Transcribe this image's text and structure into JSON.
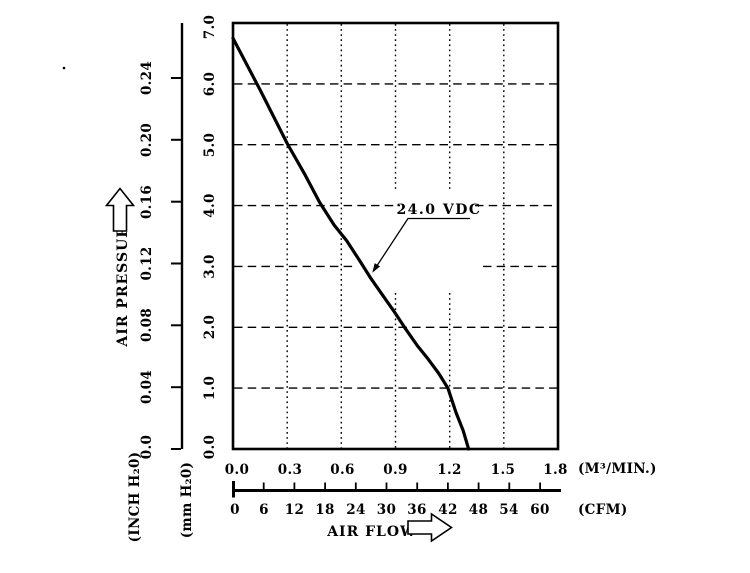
{
  "page": {
    "background": "#ffffff",
    "ink": "#000000"
  },
  "callout": {
    "label": "24.0 VDC"
  },
  "y_axis": {
    "title": "AIR PRESSURE",
    "inch": {
      "unit_label": "(INCH H₂0)",
      "ticks": [
        "0.0",
        "0.04",
        "0.08",
        "0.12",
        "0.16",
        "0.20",
        "0.24"
      ]
    },
    "mm": {
      "unit_label": "(mm H₂0)",
      "ticks": [
        "0.0",
        "1.0",
        "2.0",
        "3.0",
        "4.0",
        "5.0",
        "6.0",
        "7.0"
      ]
    }
  },
  "x_axis": {
    "title": "AIR FLOW",
    "m3min": {
      "unit_label": "(M³/MIN.)",
      "ticks": [
        "0.0",
        "0.3",
        "0.6",
        "0.9",
        "1.2",
        "1.5",
        "1.8"
      ]
    },
    "cfm": {
      "unit_label": "(CFM)",
      "ticks": [
        "0",
        "6",
        "12",
        "18",
        "24",
        "30",
        "36",
        "42",
        "48",
        "54",
        "60"
      ]
    }
  },
  "chart_data": {
    "type": "line",
    "title": "",
    "xlabel": "AIR FLOW",
    "ylabel": "AIR PRESSURE",
    "x_units": [
      "(M³/MIN.)",
      "(CFM)"
    ],
    "y_units": [
      "(INCH H₂0)",
      "(mm H₂0)"
    ],
    "xlim": [
      0,
      1.8
    ],
    "ylim": [
      0,
      7.0
    ],
    "x_ticks_m3min": [
      0,
      0.3,
      0.6,
      0.9,
      1.2,
      1.5,
      1.8
    ],
    "x_ticks_cfm": [
      0,
      6,
      12,
      18,
      24,
      30,
      36,
      42,
      48,
      54,
      60
    ],
    "y_ticks_mm_h2o": [
      0,
      1,
      2,
      3,
      4,
      5,
      6,
      7
    ],
    "y_ticks_inch_h2o": [
      0,
      0.04,
      0.08,
      0.12,
      0.16,
      0.2,
      0.24
    ],
    "grid": true,
    "legend_position": "annotation-on-curve",
    "series": [
      {
        "name": "24.0 VDC",
        "points": [
          [
            0.0,
            6.75
          ],
          [
            0.15,
            5.9
          ],
          [
            0.3,
            5.02
          ],
          [
            0.4,
            4.5
          ],
          [
            0.48,
            4.05
          ],
          [
            0.56,
            3.68
          ],
          [
            0.63,
            3.42
          ],
          [
            0.7,
            3.1
          ],
          [
            0.76,
            2.82
          ],
          [
            0.83,
            2.52
          ],
          [
            0.89,
            2.27
          ],
          [
            0.95,
            2.0
          ],
          [
            1.02,
            1.7
          ],
          [
            1.08,
            1.48
          ],
          [
            1.14,
            1.24
          ],
          [
            1.19,
            1.0
          ],
          [
            1.235,
            0.6
          ],
          [
            1.275,
            0.3
          ],
          [
            1.305,
            0.0
          ]
        ]
      }
    ]
  }
}
